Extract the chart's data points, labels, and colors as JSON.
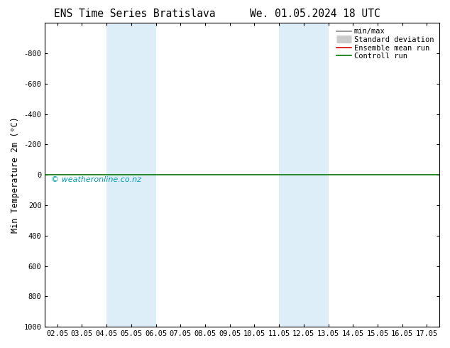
{
  "title_left": "ENS Time Series Bratislava",
  "title_right": "We. 01.05.2024 18 UTC",
  "ylabel": "Min Temperature 2m (°C)",
  "watermark": "© weatheronline.co.nz",
  "xlim_min": 0.5,
  "xlim_max": 16.5,
  "ylim_min": -1000,
  "ylim_max": 1000,
  "yticks": [
    -800,
    -600,
    -400,
    -200,
    0,
    200,
    400,
    600,
    800,
    1000
  ],
  "xtick_labels": [
    "02.05",
    "03.05",
    "04.05",
    "05.05",
    "06.05",
    "07.05",
    "08.05",
    "09.05",
    "10.05",
    "11.05",
    "12.05",
    "13.05",
    "14.05",
    "15.05",
    "16.05",
    "17.05"
  ],
  "xtick_positions": [
    1,
    2,
    3,
    4,
    5,
    6,
    7,
    8,
    9,
    10,
    11,
    12,
    13,
    14,
    15,
    16
  ],
  "shaded_bands": [
    {
      "xmin": 3,
      "xmax": 5,
      "color": "#ddeef8"
    },
    {
      "xmin": 10,
      "xmax": 12,
      "color": "#ddeef8"
    }
  ],
  "hline_y": 0,
  "hline_color": "#007700",
  "hline_lw": 1.2,
  "legend_items": [
    {
      "label": "min/max",
      "color": "#888888",
      "lw": 1.2,
      "linestyle": "-"
    },
    {
      "label": "Standard deviation",
      "color": "#cccccc",
      "lw": 8,
      "linestyle": "-"
    },
    {
      "label": "Ensemble mean run",
      "color": "#dd0000",
      "lw": 1.2,
      "linestyle": "-"
    },
    {
      "label": "Controll run",
      "color": "#007700",
      "lw": 1.2,
      "linestyle": "-"
    }
  ],
  "background_color": "#ffffff",
  "title_fontsize": 10.5,
  "label_fontsize": 8.5,
  "tick_fontsize": 7.5,
  "watermark_color": "#0099aa",
  "watermark_fontsize": 8
}
